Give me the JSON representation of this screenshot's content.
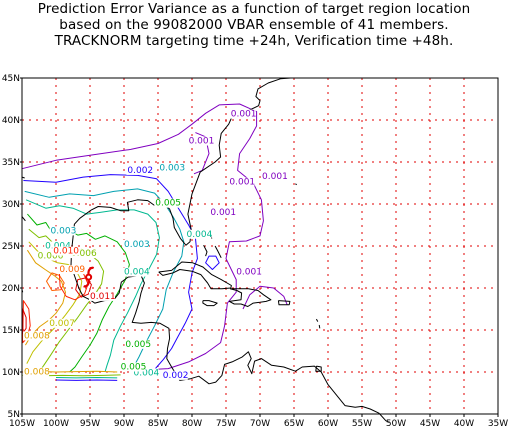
{
  "title": {
    "line1": "Prediction Error Variance as a function of target region location",
    "line2": "based on the 99082000 VBAR ensemble of 41 members.",
    "line3": "TRACKNORM targeting time +24h, Verification time +48h."
  },
  "map": {
    "lon_range": [
      -105,
      -35
    ],
    "lat_range": [
      5,
      45
    ],
    "lat_ticks": [
      "5N",
      "10N",
      "15N",
      "20N",
      "25N",
      "30N",
      "35N",
      "40N",
      "45N"
    ],
    "lon_ticks": [
      "105W",
      "100W",
      "95W",
      "90W",
      "85W",
      "80W",
      "75W",
      "70W",
      "65W",
      "60W",
      "55W",
      "50W",
      "45W",
      "40W",
      "35W"
    ],
    "grid_color": "#e00000",
    "coast_color": "#000000"
  },
  "contour_colors": {
    "0.001": "#8000c0",
    "0.002": "#2000ff",
    "0.003": "#00a0b0",
    "0.004": "#00b890",
    "0.005": "#00b000",
    "0.006": "#80c000",
    "0.007": "#c0c000",
    "0.008": "#e0a000",
    "0.009": "#ff6000",
    "0.010": "#ff2000",
    "0.011": "#e00000"
  },
  "contour_labels": [
    {
      "text": "0.001",
      "lon": -80.5,
      "lat": 37.2,
      "level": "0.001"
    },
    {
      "text": "0.001",
      "lon": -74.3,
      "lat": 40.4,
      "level": "0.001"
    },
    {
      "text": "0.001",
      "lon": -74.5,
      "lat": 32.3,
      "level": "0.001"
    },
    {
      "text": "0.001",
      "lon": -69.7,
      "lat": 33.0,
      "level": "0.001"
    },
    {
      "text": "0.001",
      "lon": -77.3,
      "lat": 28.7,
      "level": "0.001"
    },
    {
      "text": "0.001",
      "lon": -73.5,
      "lat": 21.6,
      "level": "0.001"
    },
    {
      "text": "0.002",
      "lon": -89.5,
      "lat": 33.7,
      "level": "0.002"
    },
    {
      "text": "0.002",
      "lon": -84.3,
      "lat": 9.3,
      "level": "0.002"
    },
    {
      "text": "0.003",
      "lon": -84.8,
      "lat": 34.0,
      "level": "0.003"
    },
    {
      "text": "0.003",
      "lon": -100.8,
      "lat": 26.5,
      "level": "0.003"
    },
    {
      "text": "0.003",
      "lon": -90.0,
      "lat": 24.9,
      "level": "0.003"
    },
    {
      "text": "0.004",
      "lon": -80.8,
      "lat": 26.1,
      "level": "0.004"
    },
    {
      "text": "0.004",
      "lon": -101.6,
      "lat": 24.7,
      "level": "0.004"
    },
    {
      "text": "0.004",
      "lon": -90.0,
      "lat": 21.6,
      "level": "0.004"
    },
    {
      "text": "0.004",
      "lon": -88.6,
      "lat": 9.6,
      "level": "0.004"
    },
    {
      "text": "0.005",
      "lon": -85.4,
      "lat": 29.8,
      "level": "0.005"
    },
    {
      "text": "0.005",
      "lon": -89.8,
      "lat": 13.0,
      "level": "0.005"
    },
    {
      "text": "0.005",
      "lon": -90.5,
      "lat": 10.3,
      "level": "0.005"
    },
    {
      "text": "0.006",
      "lon": -97.8,
      "lat": 23.8,
      "level": "0.006"
    },
    {
      "text": "0.006",
      "lon": -102.7,
      "lat": 23.5,
      "level": "0.006"
    },
    {
      "text": "0.007",
      "lon": -101.0,
      "lat": 15.5,
      "level": "0.007"
    },
    {
      "text": "0.008",
      "lon": -104.7,
      "lat": 9.7,
      "level": "0.008"
    },
    {
      "text": "0.008",
      "lon": -104.7,
      "lat": 14.0,
      "level": "0.008"
    },
    {
      "text": "0.009",
      "lon": -99.5,
      "lat": 21.9,
      "level": "0.009"
    },
    {
      "text": "0.010",
      "lon": -100.4,
      "lat": 24.1,
      "level": "0.010"
    },
    {
      "text": "0.011",
      "lon": -95.0,
      "lat": 18.7,
      "level": "0.011"
    }
  ],
  "marker": {
    "lon": -95.2,
    "lat": 21.3,
    "color": "#e00000",
    "icon": "hurricane-symbol-icon"
  }
}
